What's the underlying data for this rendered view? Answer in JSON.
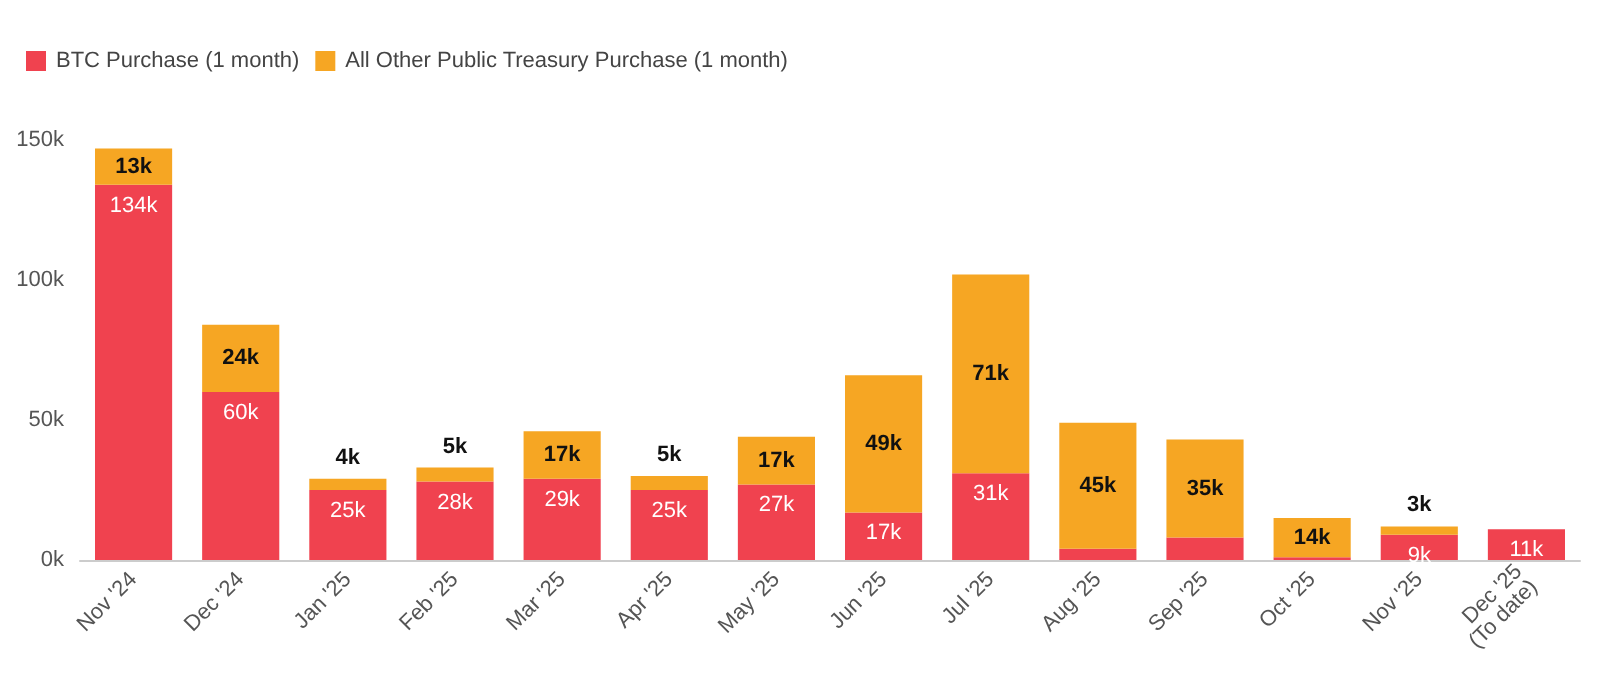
{
  "chart_data": {
    "type": "bar",
    "stacked": true,
    "categories": [
      "Nov '24",
      "Dec '24",
      "Jan '25",
      "Feb '25",
      "Mar '25",
      "Apr '25",
      "May '25",
      "Jun '25",
      "Jul '25",
      "Aug '25",
      "Sep '25",
      "Oct '25",
      "Nov '25",
      "Dec '25\n(To date)"
    ],
    "series": [
      {
        "name": "BTC Purchase (1 month)",
        "color": "#f0424f",
        "values": [
          134000,
          60000,
          25000,
          28000,
          29000,
          25000,
          27000,
          17000,
          31000,
          4000,
          8000,
          1000,
          9000,
          11000
        ],
        "value_labels": [
          "134k",
          "60k",
          "25k",
          "28k",
          "29k",
          "25k",
          "27k",
          "17k",
          "31k",
          null,
          null,
          null,
          "9k",
          "11k"
        ]
      },
      {
        "name": "All Other Public Treasury Purchase (1 month)",
        "color": "#f6a623",
        "values": [
          13000,
          24000,
          4000,
          5000,
          17000,
          5000,
          17000,
          49000,
          71000,
          45000,
          35000,
          14000,
          3000,
          null
        ],
        "value_labels": [
          "13k",
          "24k",
          "4k",
          "5k",
          "17k",
          "5k",
          "17k",
          "49k",
          "71k",
          "45k",
          "35k",
          "14k",
          "3k",
          null
        ]
      }
    ],
    "ylim": [
      0,
      150000
    ],
    "yticks": [
      {
        "value": 0,
        "label": "0k"
      },
      {
        "value": 50000,
        "label": "50k"
      },
      {
        "value": 100000,
        "label": "100k"
      },
      {
        "value": 150000,
        "label": "150k"
      }
    ],
    "legend": "top left"
  }
}
